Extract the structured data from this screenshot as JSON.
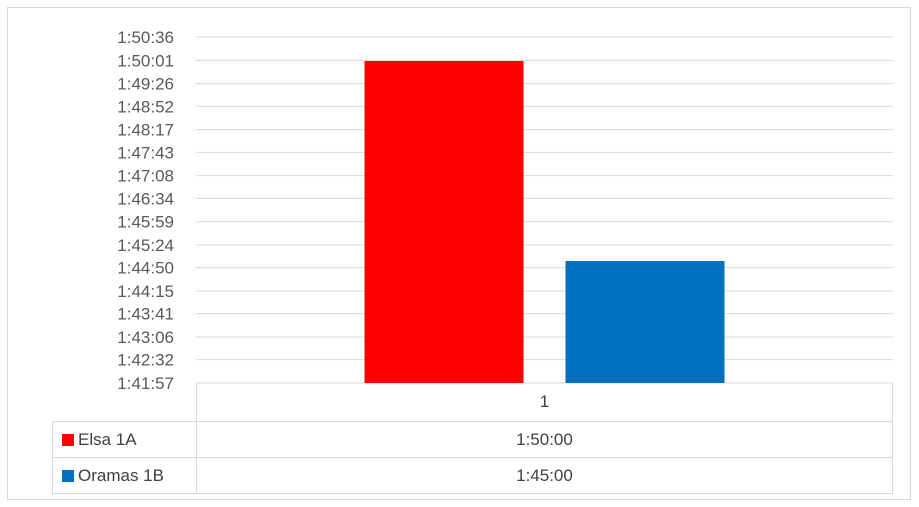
{
  "chart_data": {
    "type": "bar",
    "categories": [
      "1"
    ],
    "series": [
      {
        "name": "Elsa 1A",
        "values": [
          "1:50:00"
        ],
        "seconds": [
          6600
        ],
        "color": "#ff0000"
      },
      {
        "name": "Oramas 1B",
        "values": [
          "1:45:00"
        ],
        "seconds": [
          6300
        ],
        "color": "#0070c0"
      }
    ],
    "y_ticks": [
      "1:41:57",
      "1:42:32",
      "1:43:06",
      "1:43:41",
      "1:44:15",
      "1:44:50",
      "1:45:24",
      "1:45:59",
      "1:46:34",
      "1:47:08",
      "1:47:43",
      "1:48:17",
      "1:48:52",
      "1:49:26",
      "1:50:01",
      "1:50:36"
    ],
    "ylim": [
      "1:41:57",
      "1:50:36"
    ],
    "ylim_seconds": [
      6117,
      6636
    ],
    "grid": true,
    "legend": "data-table",
    "title": "",
    "xlabel": "",
    "ylabel": ""
  },
  "table": {
    "header": "1",
    "rows": [
      {
        "label": "Elsa 1A",
        "value": "1:50:00"
      },
      {
        "label": "Oramas 1B",
        "value": "1:45:00"
      }
    ]
  }
}
